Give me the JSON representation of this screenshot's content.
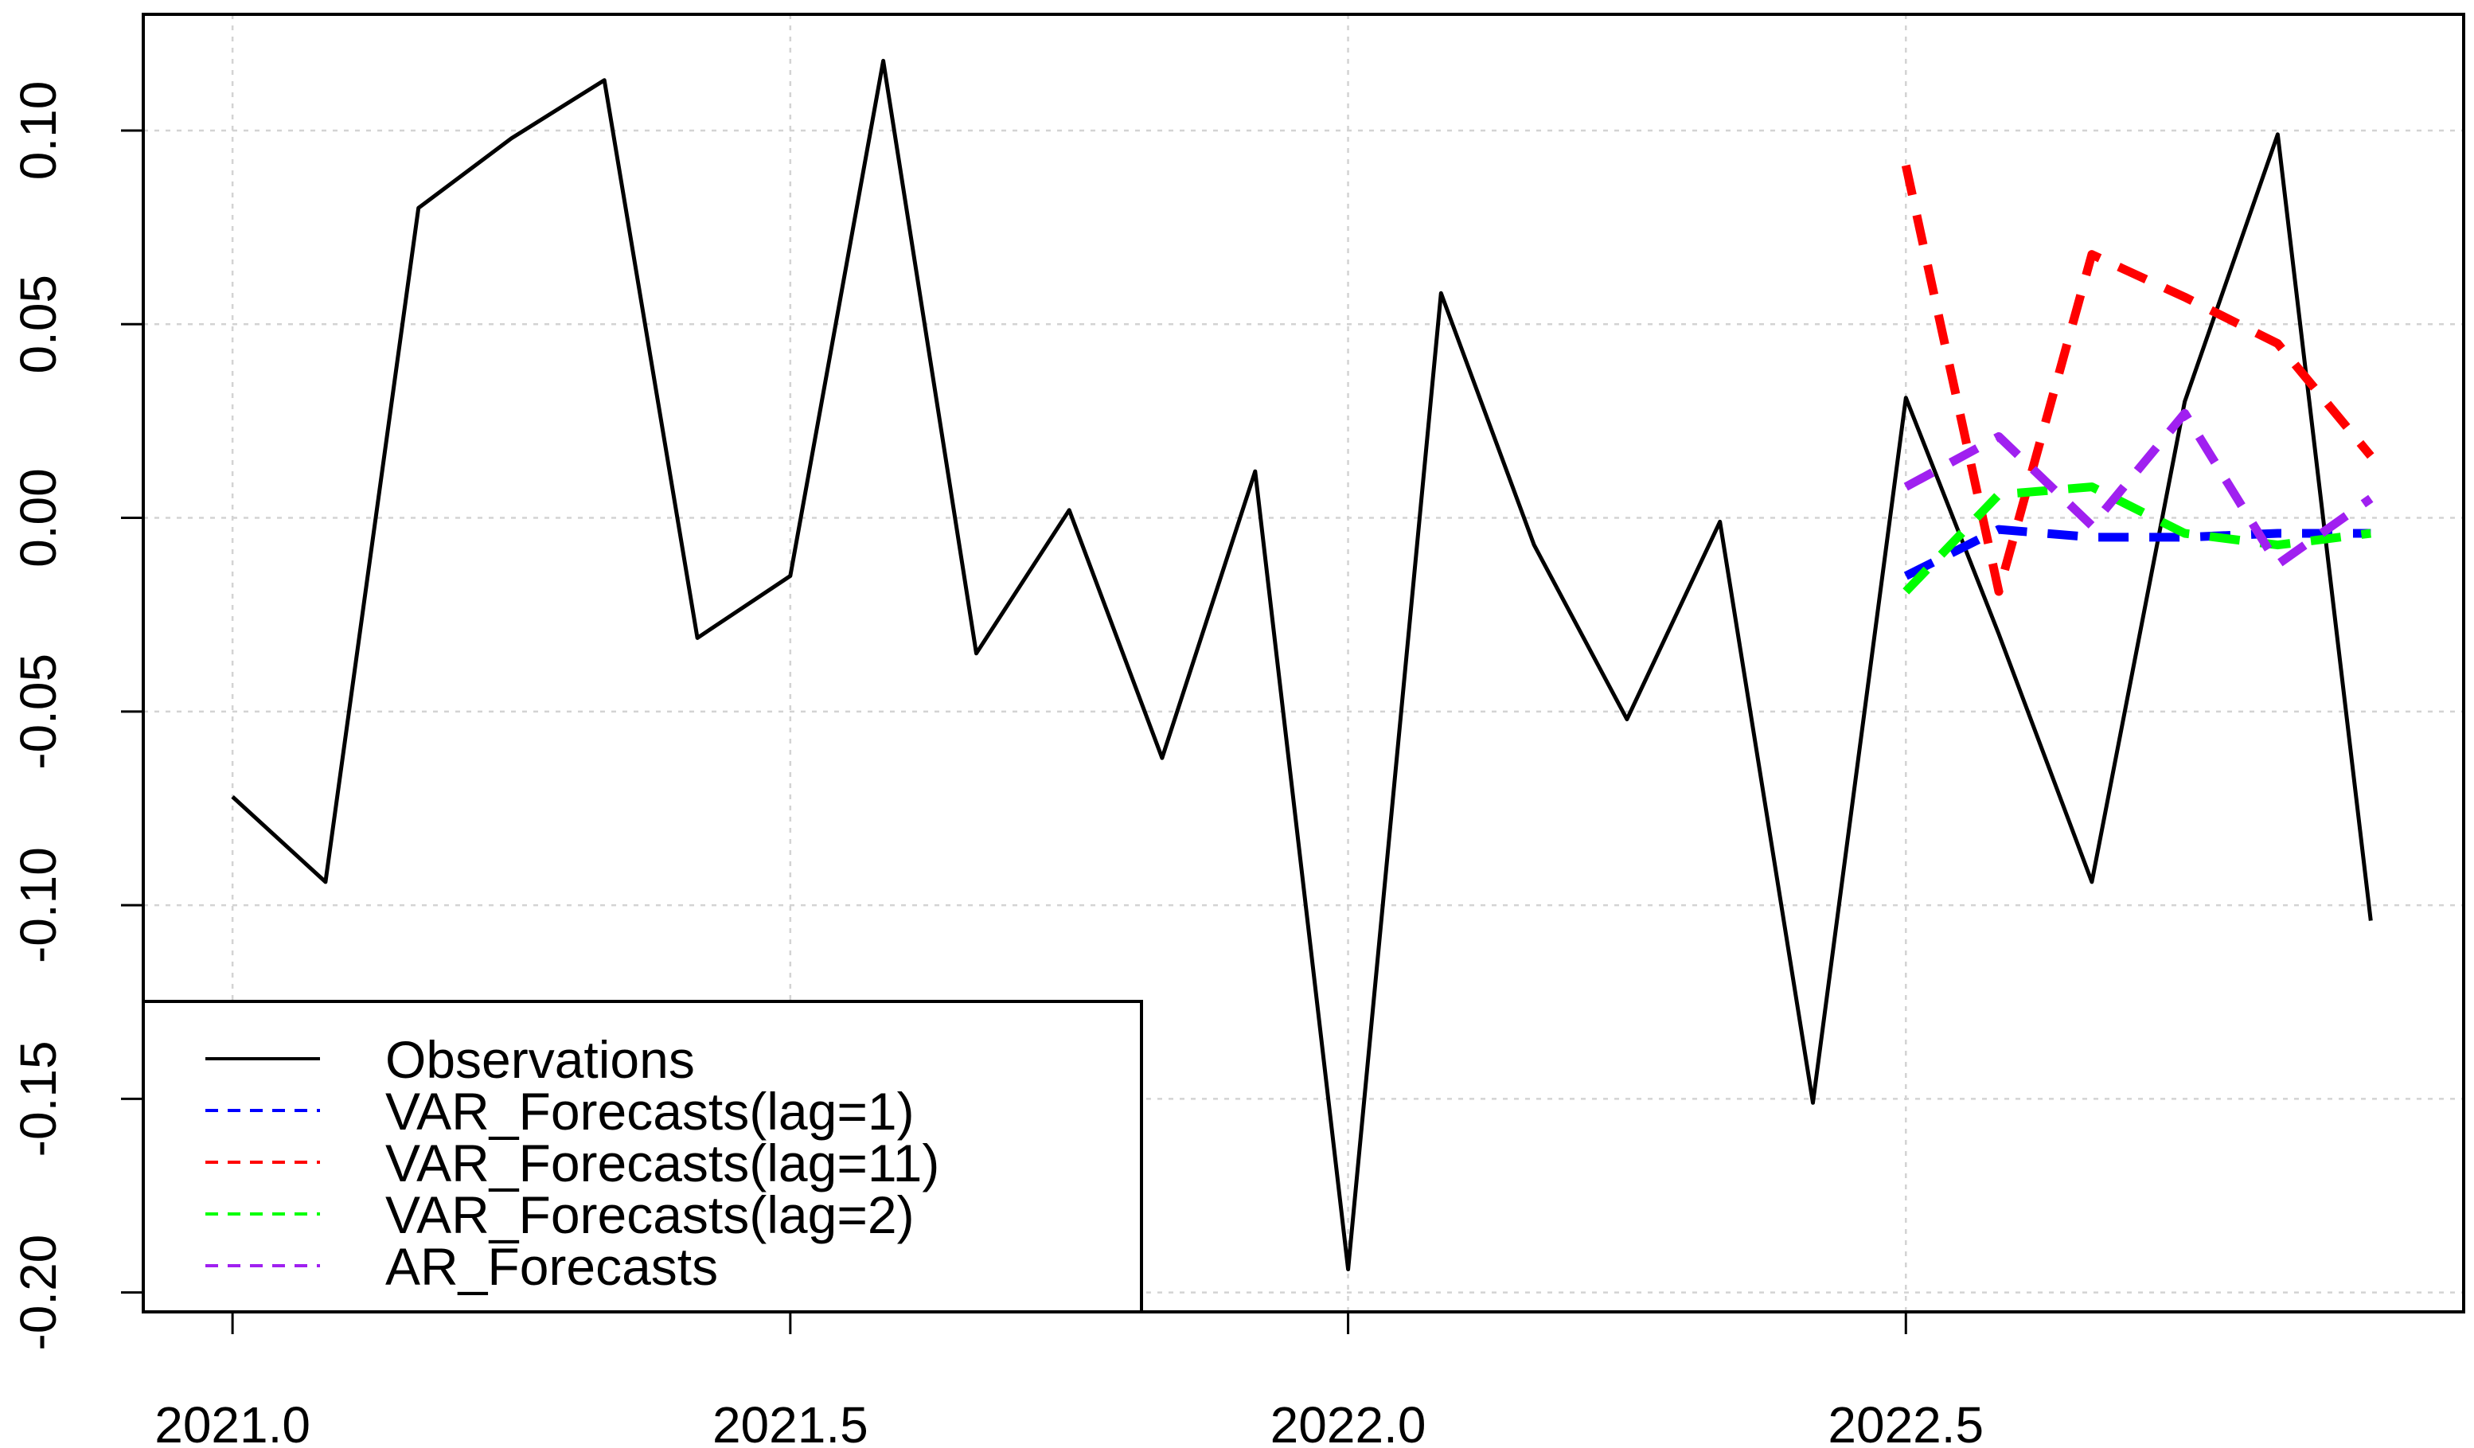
{
  "chart_data": {
    "type": "line",
    "title": "",
    "xlabel": "",
    "ylabel": "",
    "xlim": [
      2020.92,
      2023.0
    ],
    "ylim": [
      -0.205,
      0.13
    ],
    "grid": true,
    "x_ticks": [
      {
        "value": 2021.0,
        "label": "2021.0"
      },
      {
        "value": 2021.5,
        "label": "2021.5"
      },
      {
        "value": 2022.0,
        "label": "2022.0"
      },
      {
        "value": 2022.5,
        "label": "2022.5"
      }
    ],
    "y_ticks": [
      {
        "value": 0.1,
        "label": "0.10"
      },
      {
        "value": 0.05,
        "label": "0.05"
      },
      {
        "value": 0.0,
        "label": "0.00"
      },
      {
        "value": -0.05,
        "label": "-0.05"
      },
      {
        "value": -0.1,
        "label": "-0.10"
      },
      {
        "value": -0.15,
        "label": "-0.15"
      },
      {
        "value": -0.2,
        "label": "-0.20"
      }
    ],
    "legend_position": "bottom-left",
    "series": [
      {
        "name": "Observations",
        "color": "#000000",
        "style": "solid",
        "x": [
          2021.0,
          2021.0833,
          2021.1667,
          2021.25,
          2021.3333,
          2021.4167,
          2021.5,
          2021.5833,
          2021.6667,
          2021.75,
          2021.8333,
          2021.9167,
          2022.0,
          2022.0833,
          2022.1667,
          2022.25,
          2022.3333,
          2022.4167,
          2022.5,
          2022.5833,
          2022.6667,
          2022.75,
          2022.8333,
          2022.9167
        ],
        "y": [
          -0.072,
          -0.094,
          0.08,
          0.098,
          0.113,
          -0.031,
          -0.015,
          0.118,
          -0.035,
          0.002,
          -0.062,
          0.012,
          -0.194,
          0.058,
          -0.007,
          -0.052,
          -0.001,
          -0.151,
          0.031,
          -0.03,
          -0.094,
          0.03,
          0.099,
          -0.104
        ]
      },
      {
        "name": "VAR_Forecasts(lag=1)",
        "color": "#0000ff",
        "style": "dashed",
        "x": [
          2022.5,
          2022.5833,
          2022.6667,
          2022.75,
          2022.8333,
          2022.9167
        ],
        "y": [
          -0.015,
          -0.003,
          -0.005,
          -0.005,
          -0.004,
          -0.004
        ]
      },
      {
        "name": "VAR_Forecasts(lag=11)",
        "color": "#ff0000",
        "style": "dashed",
        "x": [
          2022.5,
          2022.5833,
          2022.6667,
          2022.75,
          2022.8333,
          2022.9167
        ],
        "y": [
          0.091,
          -0.019,
          0.068,
          0.057,
          0.045,
          0.016
        ]
      },
      {
        "name": "VAR_Forecasts(lag=2)",
        "color": "#00ff00",
        "style": "dashed",
        "x": [
          2022.5,
          2022.5833,
          2022.6667,
          2022.75,
          2022.8333,
          2022.9167
        ],
        "y": [
          -0.019,
          0.006,
          0.008,
          -0.004,
          -0.007,
          -0.004
        ]
      },
      {
        "name": "AR_Forecasts",
        "color": "#a020f0",
        "style": "dashed",
        "x": [
          2022.5,
          2022.5833,
          2022.6667,
          2022.75,
          2022.8333,
          2022.9167
        ],
        "y": [
          0.008,
          0.021,
          -0.002,
          0.027,
          -0.012,
          0.005
        ]
      }
    ],
    "legend": [
      {
        "label": "Observations",
        "color": "#000000",
        "style": "solid"
      },
      {
        "label": "VAR_Forecasts(lag=1)",
        "color": "#0000ff",
        "style": "dashed"
      },
      {
        "label": "VAR_Forecasts(lag=11)",
        "color": "#ff0000",
        "style": "dashed"
      },
      {
        "label": "VAR_Forecasts(lag=2)",
        "color": "#00ff00",
        "style": "dashed"
      },
      {
        "label": "AR_Forecasts",
        "color": "#a020f0",
        "style": "dashed"
      }
    ]
  }
}
